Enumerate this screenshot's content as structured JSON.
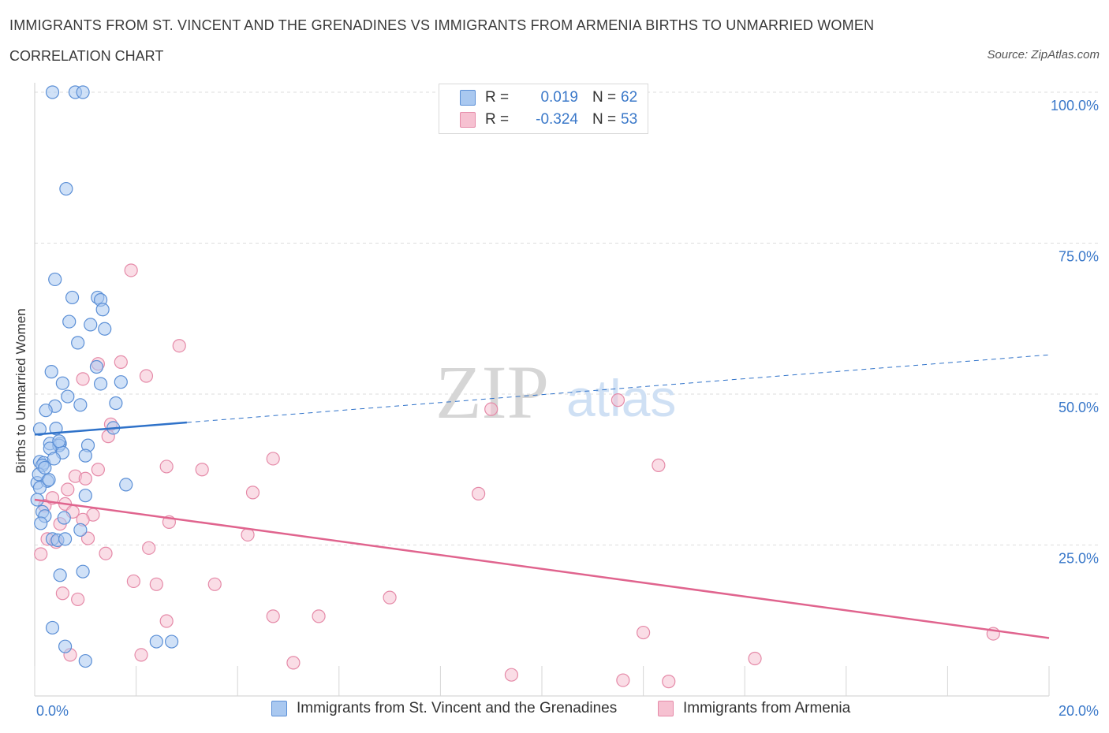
{
  "title": "IMMIGRANTS FROM ST. VINCENT AND THE GRENADINES VS IMMIGRANTS FROM ARMENIA BIRTHS TO UNMARRIED WOMEN",
  "subtitle": "CORRELATION CHART",
  "source": "Source: ZipAtlas.com",
  "watermark": {
    "zip": "ZIP",
    "atlas": "atlas"
  },
  "legend": {
    "r_label": "R =",
    "n_label": "N =",
    "series1": {
      "r": "0.019",
      "n": "62"
    },
    "series2": {
      "r": "-0.324",
      "n": "53"
    }
  },
  "colors": {
    "blue_fill": "#a9c8f0",
    "blue_stroke": "#5b8fd6",
    "blue_line": "#2f72c9",
    "pink_fill": "#f6c1d1",
    "pink_stroke": "#e58aa8",
    "pink_line": "#e0648e",
    "axis_text": "#3a78c9",
    "grid": "#dddddd"
  },
  "chart_data": {
    "type": "scatter",
    "title": "IMMIGRANTS FROM ST. VINCENT AND THE GRENADINES VS IMMIGRANTS FROM ARMENIA BIRTHS TO UNMARRIED WOMEN",
    "xlabel": "",
    "ylabel": "Births to Unmarried Women",
    "xlim": [
      0,
      20
    ],
    "ylim": [
      0,
      100
    ],
    "x_tick_labels": [
      "0.0%",
      "20.0%"
    ],
    "y_tick_labels": [
      "100.0%",
      "75.0%",
      "50.0%",
      "25.0%"
    ],
    "y_ticks": [
      100,
      75,
      50,
      25
    ],
    "series": [
      {
        "name": "Immigrants from St. Vincent and the Grenadines",
        "color": "blue",
        "trend": {
          "x0": 0,
          "y0": 43.3,
          "x1": 3.0,
          "y1": 45.3,
          "dash_to_x": 20,
          "dash_to_y": 56.5
        },
        "points": [
          [
            0.35,
            100
          ],
          [
            0.8,
            100
          ],
          [
            0.95,
            100
          ],
          [
            0.62,
            84
          ],
          [
            0.4,
            69
          ],
          [
            0.74,
            66
          ],
          [
            1.24,
            66
          ],
          [
            1.3,
            65.6
          ],
          [
            1.34,
            64
          ],
          [
            0.68,
            62
          ],
          [
            1.1,
            61.5
          ],
          [
            1.38,
            60.8
          ],
          [
            0.85,
            58.5
          ],
          [
            1.22,
            54.5
          ],
          [
            0.33,
            53.7
          ],
          [
            0.55,
            51.8
          ],
          [
            1.3,
            51.7
          ],
          [
            1.7,
            52
          ],
          [
            0.65,
            49.6
          ],
          [
            0.9,
            48.2
          ],
          [
            1.6,
            48.5
          ],
          [
            0.4,
            48
          ],
          [
            0.22,
            47.3
          ],
          [
            0.42,
            44.3
          ],
          [
            1.55,
            44.4
          ],
          [
            0.1,
            44.2
          ],
          [
            0.3,
            41.8
          ],
          [
            0.5,
            41.8
          ],
          [
            0.48,
            41.5
          ],
          [
            1.05,
            41.5
          ],
          [
            0.3,
            41
          ],
          [
            0.55,
            40.3
          ],
          [
            0.1,
            38.8
          ],
          [
            0.18,
            38.6
          ],
          [
            0.15,
            38.2
          ],
          [
            0.05,
            35.3
          ],
          [
            0.25,
            35.6
          ],
          [
            1.8,
            35
          ],
          [
            0.1,
            34.5
          ],
          [
            0.05,
            32.5
          ],
          [
            1.0,
            33.2
          ],
          [
            0.15,
            30.5
          ],
          [
            0.2,
            29.8
          ],
          [
            0.58,
            29.5
          ],
          [
            0.12,
            28.6
          ],
          [
            0.9,
            27.5
          ],
          [
            0.35,
            26
          ],
          [
            0.45,
            25.8
          ],
          [
            0.6,
            26
          ],
          [
            0.5,
            20
          ],
          [
            0.95,
            20.6
          ],
          [
            0.35,
            11.3
          ],
          [
            0.6,
            8.2
          ],
          [
            1.0,
            5.8
          ],
          [
            2.4,
            9
          ],
          [
            2.7,
            9
          ],
          [
            0.08,
            36.7
          ],
          [
            0.28,
            35.8
          ],
          [
            0.2,
            37.8
          ],
          [
            0.38,
            39.3
          ],
          [
            1.0,
            39.8
          ],
          [
            0.48,
            42.2
          ]
        ]
      },
      {
        "name": "Immigrants from Armenia",
        "color": "pink",
        "trend": {
          "x0": 0,
          "y0": 32.5,
          "x1": 20,
          "y1": 9.6
        },
        "points": [
          [
            1.9,
            70.5
          ],
          [
            2.85,
            58
          ],
          [
            1.25,
            55
          ],
          [
            1.7,
            55.3
          ],
          [
            2.2,
            53
          ],
          [
            0.95,
            52.5
          ],
          [
            9.0,
            47.5
          ],
          [
            11.5,
            49
          ],
          [
            1.5,
            45
          ],
          [
            1.45,
            43
          ],
          [
            4.7,
            39.3
          ],
          [
            2.6,
            38
          ],
          [
            3.3,
            37.5
          ],
          [
            12.3,
            38.2
          ],
          [
            0.8,
            36.4
          ],
          [
            1.0,
            36
          ],
          [
            4.3,
            33.7
          ],
          [
            8.75,
            33.5
          ],
          [
            0.6,
            31.8
          ],
          [
            0.2,
            31.5
          ],
          [
            0.75,
            30.5
          ],
          [
            1.15,
            30
          ],
          [
            0.95,
            29.2
          ],
          [
            2.65,
            28.8
          ],
          [
            4.2,
            26.7
          ],
          [
            0.25,
            26
          ],
          [
            0.42,
            25.5
          ],
          [
            1.05,
            26.1
          ],
          [
            1.4,
            23.6
          ],
          [
            2.25,
            24.5
          ],
          [
            0.12,
            23.5
          ],
          [
            1.95,
            19
          ],
          [
            2.4,
            18.5
          ],
          [
            3.55,
            18.5
          ],
          [
            0.55,
            17
          ],
          [
            0.85,
            16
          ],
          [
            7.0,
            16.3
          ],
          [
            2.6,
            12.4
          ],
          [
            4.7,
            13.2
          ],
          [
            5.6,
            13.2
          ],
          [
            2.1,
            6.8
          ],
          [
            0.7,
            6.8
          ],
          [
            5.1,
            5.5
          ],
          [
            12.0,
            10.5
          ],
          [
            14.2,
            6.2
          ],
          [
            18.9,
            10.3
          ],
          [
            9.4,
            3.5
          ],
          [
            11.6,
            2.6
          ],
          [
            12.5,
            2.4
          ],
          [
            0.35,
            32.8
          ],
          [
            0.5,
            28.5
          ],
          [
            1.25,
            37.5
          ],
          [
            0.65,
            34.2
          ]
        ]
      }
    ]
  }
}
